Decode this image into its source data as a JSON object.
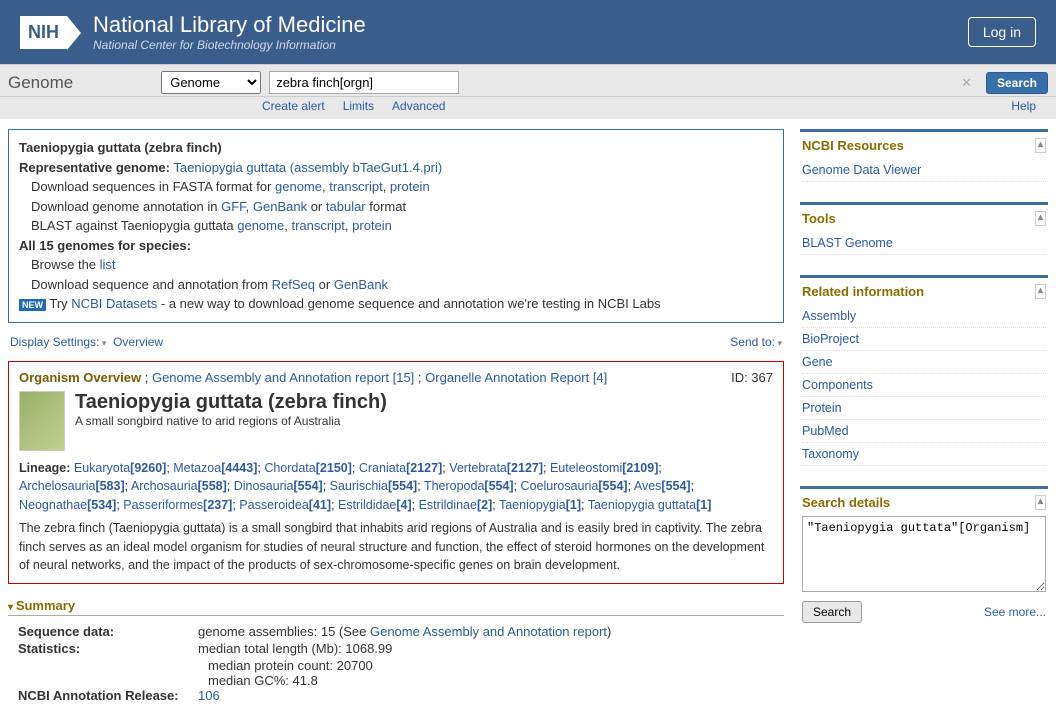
{
  "header": {
    "logo": "NIH",
    "title": "National Library of Medicine",
    "subtitle": "National Center for Biotechnology Information",
    "login": "Log in"
  },
  "search": {
    "page": "Genome",
    "db": "Genome",
    "query": "zebra finch[orgn]",
    "btn": "Search",
    "links": {
      "create": "Create alert",
      "limits": "Limits",
      "advanced": "Advanced",
      "help": "Help"
    }
  },
  "infobox": {
    "head": "Taeniopygia guttata (zebra finch)",
    "rep_label": "Representative genome:",
    "rep_link": "Taeniopygia guttata (assembly bTaeGut1.4.pri)",
    "dl_fasta_pre": "Download sequences in FASTA format for ",
    "dl_fasta_links": [
      "genome",
      "transcript",
      "protein"
    ],
    "dl_annot_pre": "Download genome annotation in ",
    "dl_annot_links": [
      "GFF",
      "GenBank"
    ],
    "dl_annot_or": " or ",
    "dl_annot_tab": "tabular",
    "dl_annot_suf": " format",
    "blast_pre": "BLAST against Taeniopygia guttata ",
    "blast_links": [
      "genome",
      "transcript",
      "protein"
    ],
    "all15": "All 15 genomes for species:",
    "browse_pre": "Browse the ",
    "browse_link": "list",
    "dlseq_pre": "Download sequence and annotation from ",
    "dlseq_links": [
      "RefSeq",
      "GenBank"
    ],
    "new_try": "Try ",
    "new_link": "NCBI Datasets",
    "new_suf": " - a new way to download genome sequence and annotation we're testing in NCBI Labs"
  },
  "toolbar": {
    "disp": "Display Settings:",
    "overview": "Overview",
    "sendto": "Send to:"
  },
  "org": {
    "tab1": "Organism Overview",
    "tab2": "Genome Assembly and Annotation report [15]",
    "tab3": "Organelle Annotation Report [4]",
    "id": "ID: 367",
    "name": "Taeniopygia guttata (zebra finch)",
    "short": "A small songbird native to arid regions of Australia",
    "lineage_lbl": "Lineage:",
    "lineage": [
      "Eukaryota[9260]",
      "Metazoa[4443]",
      "Chordata[2150]",
      "Craniata[2127]",
      "Vertebrata[2127]",
      "Euteleostomi[2109]",
      "Archelosauria[583]",
      "Archosauria[558]",
      "Dinosauria[554]",
      "Saurischia[554]",
      "Theropoda[554]",
      "Coelurosauria[554]",
      "Aves[554]",
      "Neognathae[534]",
      "Passeriformes[237]",
      "Passeroidea[41]",
      "Estrildidae[4]",
      "Estrildinae[2]",
      "Taeniopygia[1]",
      "Taeniopygia guttata[1]"
    ],
    "para": "The zebra finch (Taeniopygia guttata) is a small songbird that inhabits arid regions of Australia and is easily bred in captivity. The zebra finch serves as an ideal model organism for studies of neural structure and function, the effect of steroid hormones on the development of neural networks, and the impact of the products of sex-chromosome-specific genes on brain development."
  },
  "summary": {
    "title": "Summary",
    "seqdata_lbl": "Sequence data:",
    "seqdata_val": "genome assemblies: 15 (See  ",
    "seqdata_link": "Genome Assembly and Annotation report",
    "seqdata_suf": ")",
    "stats_lbl": "Statistics:",
    "stats1": "median total length (Mb): 1068.99",
    "stats2": "median protein count: 20700",
    "stats3": "median GC%: 41.8",
    "annot_lbl": "NCBI Annotation Release:",
    "annot_link": "106"
  },
  "side": {
    "resources": {
      "title": "NCBI Resources",
      "items": [
        "Genome Data Viewer"
      ]
    },
    "tools": {
      "title": "Tools",
      "items": [
        "BLAST Genome"
      ]
    },
    "related": {
      "title": "Related information",
      "items": [
        "Assembly",
        "BioProject",
        "Gene",
        "Components",
        "Protein",
        "PubMed",
        "Taxonomy"
      ]
    },
    "searchdet": {
      "title": "Search details",
      "text": "\"Taeniopygia guttata\"[Organism]",
      "btn": "Search",
      "more": "See more..."
    }
  }
}
